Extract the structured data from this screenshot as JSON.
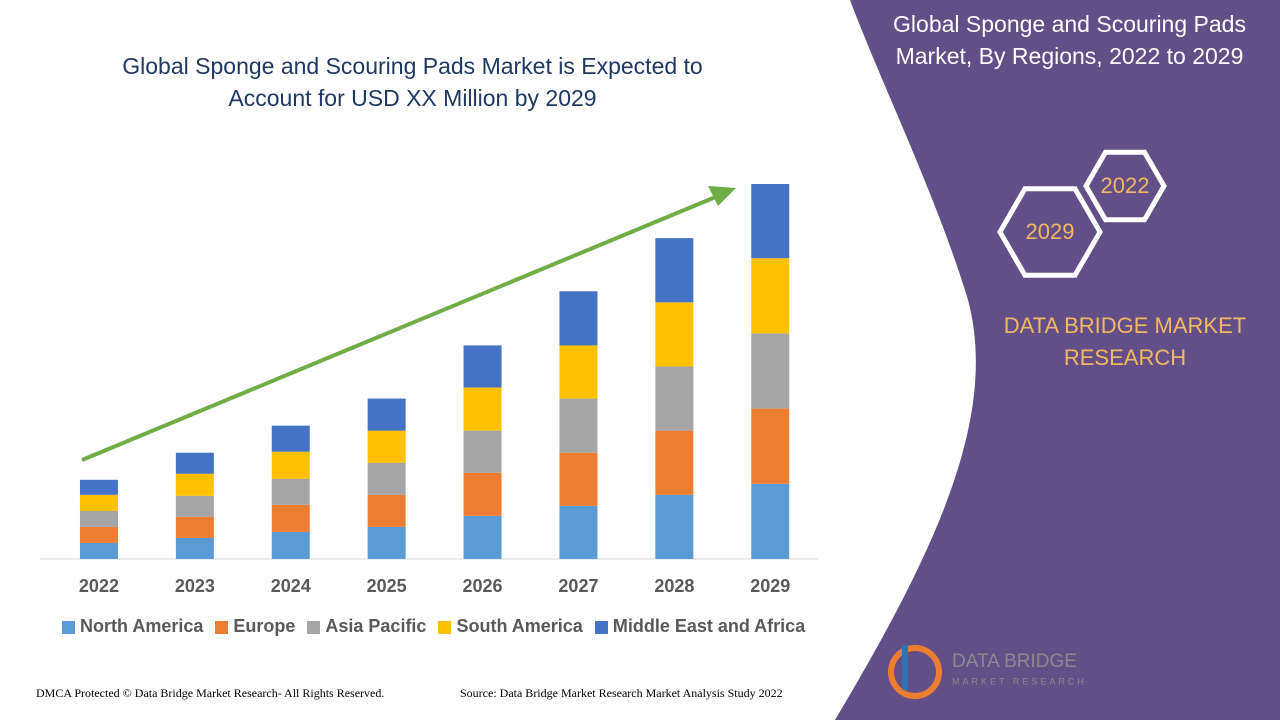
{
  "chart_data": {
    "type": "stacked-bar",
    "title": "Global Sponge and Scouring Pads Market is Expected to Account for USD XX Million by 2029",
    "categories": [
      "2022",
      "2023",
      "2024",
      "2025",
      "2026",
      "2027",
      "2028",
      "2029"
    ],
    "series": [
      {
        "name": "North America",
        "color": "#5b9bd5",
        "values": [
          16,
          21,
          27,
          32,
          43,
          53,
          64,
          75
        ]
      },
      {
        "name": "Europe",
        "color": "#ed7d31",
        "values": [
          16,
          21,
          27,
          32,
          43,
          53,
          64,
          75
        ]
      },
      {
        "name": "Asia Pacific",
        "color": "#a5a5a5",
        "values": [
          16,
          21,
          26,
          32,
          42,
          54,
          64,
          75
        ]
      },
      {
        "name": "South America",
        "color": "#ffc000",
        "values": [
          16,
          22,
          27,
          32,
          43,
          53,
          64,
          75
        ]
      },
      {
        "name": "Middle East and Africa",
        "color": "#4472c4",
        "values": [
          15,
          21,
          26,
          32,
          42,
          54,
          64,
          74
        ]
      }
    ]
  },
  "side_panel": {
    "title": "Global Sponge and Scouring Pads Market, By Regions, 2022 to 2029",
    "hexagons": [
      "2022",
      "2029"
    ],
    "brand": "DATA BRIDGE MARKET RESEARCH"
  },
  "logo": {
    "name": "DATA BRIDGE",
    "tagline": "MARKET RESEARCH"
  },
  "footer": {
    "copyright": "DMCA Protected © Data Bridge Market Research- All Rights Reserved.",
    "source": "Source: Data Bridge Market Research Market Analysis Study 2022"
  }
}
